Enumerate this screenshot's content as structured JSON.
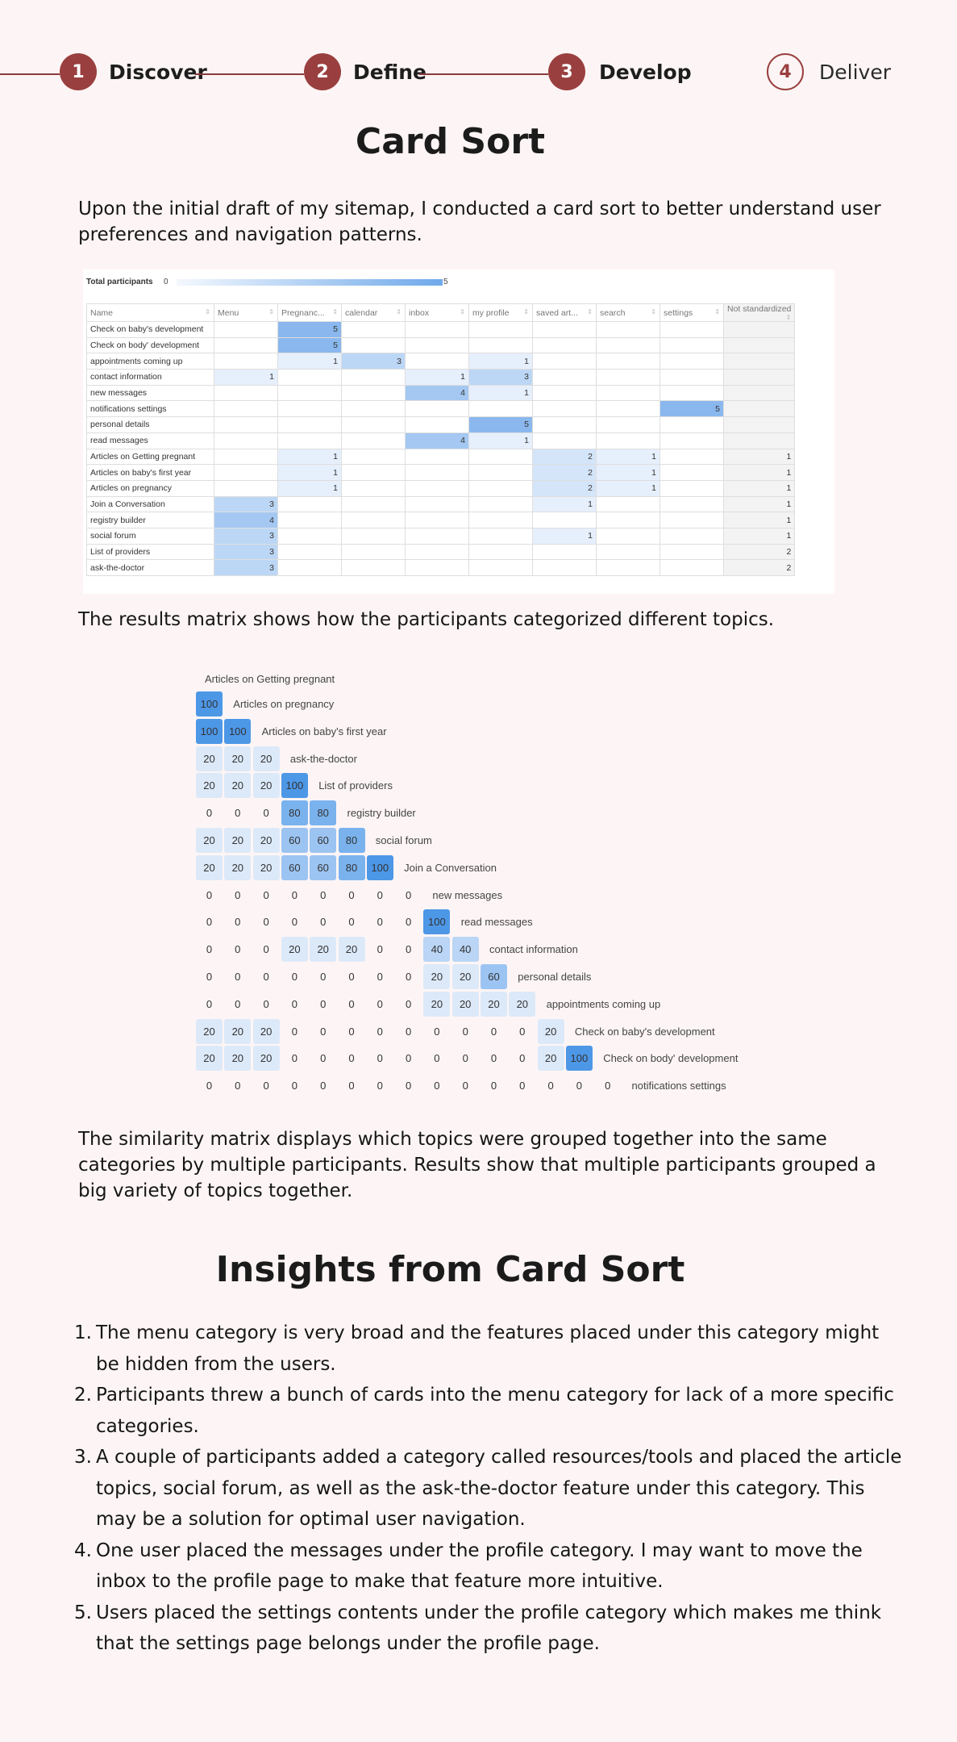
{
  "stepper": {
    "steps": [
      {
        "number": "1",
        "label": "Discover"
      },
      {
        "number": "2",
        "label": "Define"
      },
      {
        "number": "3",
        "label": "Develop"
      },
      {
        "number": "4",
        "label": "Deliver"
      }
    ],
    "colors": {
      "accent": "#9a3f3f"
    }
  },
  "card_sort": {
    "title": "Card Sort",
    "intro": "Upon the initial draft of my sitemap, I conducted a card sort to better understand user preferences and navigation patterns.",
    "results_caption": "The results matrix shows how the participants categorized different topics.",
    "similarity_caption": "The similarity matrix displays which topics were grouped together into the same categories by multiple participants. Results show that multiple participants grouped a big variety of topics together."
  },
  "results_matrix": {
    "total_label": "Total participants",
    "total_min": "0",
    "total_max": "5",
    "columns": [
      "Name",
      "Menu",
      "Pregnanc...",
      "calendar",
      "inbox",
      "my profile",
      "saved art...",
      "search",
      "settings",
      "Not standardized"
    ],
    "rows": [
      {
        "name": "Check on baby's development",
        "values": [
          "",
          "5",
          "",
          "",
          "",
          "",
          "",
          "",
          ""
        ]
      },
      {
        "name": "Check on body' development",
        "values": [
          "",
          "5",
          "",
          "",
          "",
          "",
          "",
          "",
          ""
        ]
      },
      {
        "name": "appointments coming up",
        "values": [
          "",
          "1",
          "3",
          "",
          "1",
          "",
          "",
          "",
          ""
        ]
      },
      {
        "name": "contact information",
        "values": [
          "1",
          "",
          "",
          "1",
          "3",
          "",
          "",
          "",
          ""
        ]
      },
      {
        "name": "new messages",
        "values": [
          "",
          "",
          "",
          "4",
          "1",
          "",
          "",
          "",
          ""
        ]
      },
      {
        "name": "notifications settings",
        "values": [
          "",
          "",
          "",
          "",
          "",
          "",
          "",
          "5",
          ""
        ]
      },
      {
        "name": "personal details",
        "values": [
          "",
          "",
          "",
          "",
          "5",
          "",
          "",
          "",
          ""
        ]
      },
      {
        "name": "read messages",
        "values": [
          "",
          "",
          "",
          "4",
          "1",
          "",
          "",
          "",
          ""
        ]
      },
      {
        "name": "Articles on Getting pregnant",
        "values": [
          "",
          "1",
          "",
          "",
          "",
          "2",
          "1",
          "",
          "1"
        ]
      },
      {
        "name": "Articles on baby's first year",
        "values": [
          "",
          "1",
          "",
          "",
          "",
          "2",
          "1",
          "",
          "1"
        ]
      },
      {
        "name": "Articles on pregnancy",
        "values": [
          "",
          "1",
          "",
          "",
          "",
          "2",
          "1",
          "",
          "1"
        ]
      },
      {
        "name": "Join a Conversation",
        "values": [
          "3",
          "",
          "",
          "",
          "",
          "1",
          "",
          "",
          "1"
        ]
      },
      {
        "name": "registry builder",
        "values": [
          "4",
          "",
          "",
          "",
          "",
          "",
          "",
          "",
          "1"
        ]
      },
      {
        "name": "social forum",
        "values": [
          "3",
          "",
          "",
          "",
          "",
          "1",
          "",
          "",
          "1"
        ]
      },
      {
        "name": "List of providers",
        "values": [
          "3",
          "",
          "",
          "",
          "",
          "",
          "",
          "",
          "2"
        ]
      },
      {
        "name": "ask-the-doctor",
        "values": [
          "3",
          "",
          "",
          "",
          "",
          "",
          "",
          "",
          "2"
        ]
      }
    ]
  },
  "similarity_matrix": {
    "header_label": "Articles on Getting pregnant",
    "rows": [
      {
        "label": "Articles on pregnancy",
        "values": [
          100
        ]
      },
      {
        "label": "Articles on baby's first year",
        "values": [
          100,
          100
        ]
      },
      {
        "label": "ask-the-doctor",
        "values": [
          20,
          20,
          20
        ]
      },
      {
        "label": "List of providers",
        "values": [
          20,
          20,
          20,
          100
        ]
      },
      {
        "label": "registry builder",
        "values": [
          0,
          0,
          0,
          80,
          80
        ]
      },
      {
        "label": "social forum",
        "values": [
          20,
          20,
          20,
          60,
          60,
          80
        ]
      },
      {
        "label": "Join a Conversation",
        "values": [
          20,
          20,
          20,
          60,
          60,
          80,
          100
        ]
      },
      {
        "label": "new messages",
        "values": [
          0,
          0,
          0,
          0,
          0,
          0,
          0,
          0
        ]
      },
      {
        "label": "read messages",
        "values": [
          0,
          0,
          0,
          0,
          0,
          0,
          0,
          0,
          100
        ]
      },
      {
        "label": "contact information",
        "values": [
          0,
          0,
          0,
          20,
          20,
          20,
          0,
          0,
          40,
          40
        ]
      },
      {
        "label": "personal details",
        "values": [
          0,
          0,
          0,
          0,
          0,
          0,
          0,
          0,
          20,
          20,
          60
        ]
      },
      {
        "label": "appointments coming up",
        "values": [
          0,
          0,
          0,
          0,
          0,
          0,
          0,
          0,
          20,
          20,
          20,
          20
        ]
      },
      {
        "label": "Check on baby's development",
        "values": [
          20,
          20,
          20,
          0,
          0,
          0,
          0,
          0,
          0,
          0,
          0,
          0,
          20
        ]
      },
      {
        "label": "Check on body' development",
        "values": [
          20,
          20,
          20,
          0,
          0,
          0,
          0,
          0,
          0,
          0,
          0,
          0,
          20,
          100
        ]
      },
      {
        "label": "notifications settings",
        "values": [
          0,
          0,
          0,
          0,
          0,
          0,
          0,
          0,
          0,
          0,
          0,
          0,
          0,
          0,
          0
        ]
      }
    ]
  },
  "insights": {
    "title": "Insights from Card Sort",
    "items": [
      {
        "num": "1.",
        "text": "The menu category is very broad and the features placed under this category might be hidden from the users."
      },
      {
        "num": "2.",
        "text": "Participants threw a bunch of cards into the menu category for lack of a more specific categories."
      },
      {
        "num": "3.",
        "text": "A couple of participants added a category called resources/tools and placed the article topics, social forum, as well as the ask-the-doctor feature under this category. This may be a solution for optimal user navigation."
      },
      {
        "num": "4.",
        "text": "One user placed the messages under the profile category. I may want to move the inbox to the profile page to make that feature more intuitive."
      },
      {
        "num": "5.",
        "text": "Users placed the settings contents under the profile category which makes me think that the settings page belongs under the profile page."
      }
    ]
  }
}
